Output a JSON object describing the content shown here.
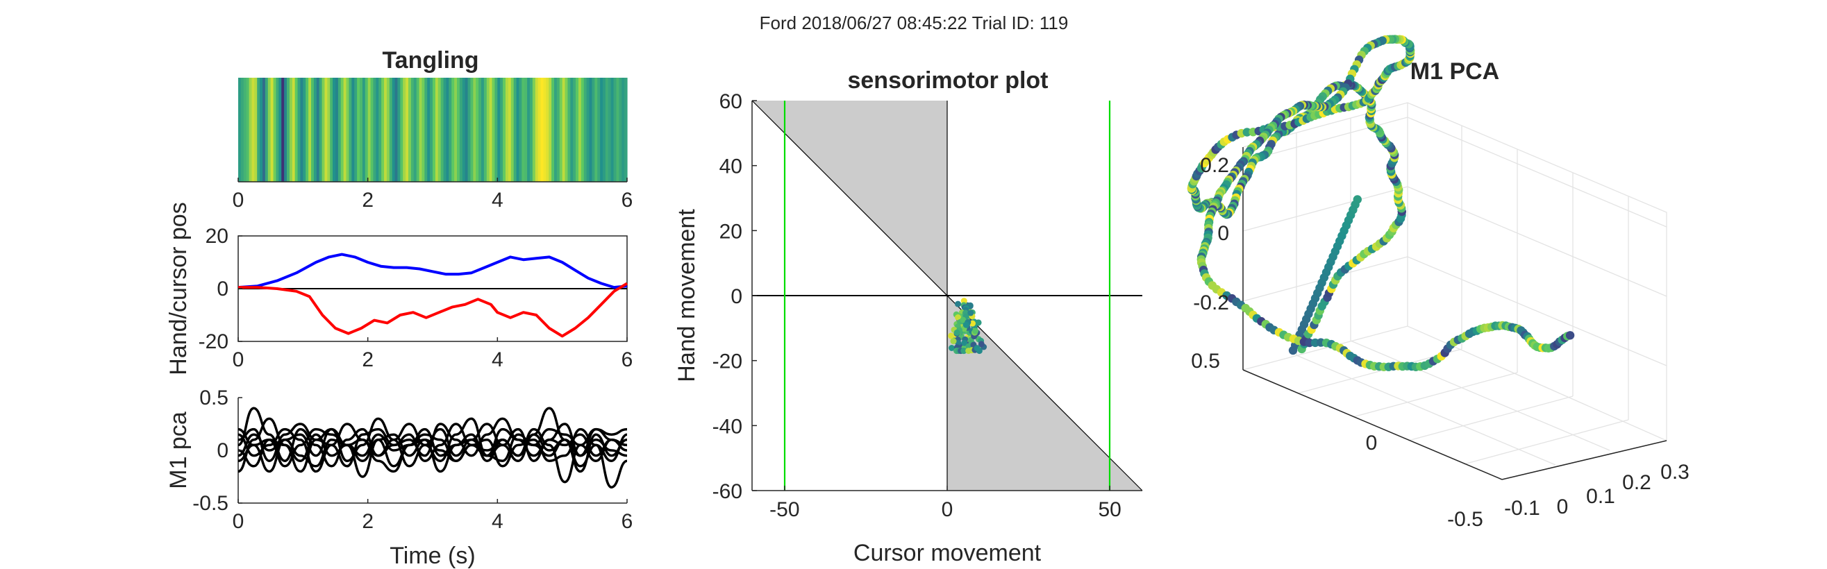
{
  "figure": {
    "suptitle": "Ford 2018/06/27 08:45:22 Trial ID: 119"
  },
  "chart_data": [
    {
      "id": "tangling",
      "type": "heatmap",
      "title": "Tangling",
      "xlim": [
        0,
        6
      ],
      "xticks": [
        "0",
        "2",
        "4",
        "6"
      ],
      "colormap": "viridis",
      "values": [
        0.55,
        0.6,
        0.65,
        0.7,
        0.85,
        0.92,
        0.88,
        0.6,
        0.5,
        0.35,
        0.6,
        0.82,
        0.93,
        0.78,
        0.62,
        0.5,
        0.15,
        0.45,
        0.65,
        0.82,
        0.92,
        0.75,
        0.58,
        0.45,
        0.55,
        0.72,
        0.88,
        0.7,
        0.55,
        0.42,
        0.6,
        0.8,
        0.92,
        0.85,
        0.66,
        0.5,
        0.45,
        0.62,
        0.78,
        0.9,
        0.8,
        0.63,
        0.48,
        0.58,
        0.75,
        0.68,
        0.55,
        0.7,
        0.84,
        0.72,
        0.6,
        0.52,
        0.62,
        0.78,
        0.9,
        0.82,
        0.65,
        0.5,
        0.4,
        0.55,
        0.72,
        0.86,
        0.92,
        0.8,
        0.65,
        0.58,
        0.7,
        0.85,
        0.78,
        0.62,
        0.5,
        0.6,
        0.75,
        0.88,
        0.8,
        0.66,
        0.55,
        0.48,
        0.6,
        0.74,
        0.82,
        0.72,
        0.6,
        0.52,
        0.45,
        0.58,
        0.7,
        0.82,
        0.75,
        0.64,
        0.55,
        0.68,
        0.82,
        0.9,
        0.78,
        0.64,
        0.5,
        0.6,
        0.76,
        0.88,
        0.92,
        0.8,
        0.62,
        0.5,
        0.58,
        0.7,
        0.68,
        0.55,
        0.62,
        0.8,
        0.92,
        0.97,
        1.0,
        0.98,
        0.95,
        0.88,
        0.72,
        0.58,
        0.64,
        0.78,
        0.9,
        0.8,
        0.66,
        0.55,
        0.62,
        0.74,
        0.86,
        0.75,
        0.62,
        0.55,
        0.48,
        0.58,
        0.68,
        0.6,
        0.5,
        0.55,
        0.62,
        0.58,
        0.52,
        0.6,
        0.66,
        0.6,
        0.54,
        0.58
      ]
    },
    {
      "id": "handcursor",
      "type": "line",
      "ylabel": "Hand/cursor pos",
      "xlim": [
        0,
        6
      ],
      "ylim": [
        -20,
        20
      ],
      "xticks": [
        "0",
        "2",
        "4",
        "6"
      ],
      "yticks": [
        "20",
        "0",
        "-20"
      ],
      "zero_line": true,
      "series": [
        {
          "color": "#0000ff",
          "points": [
            [
              0,
              0.5
            ],
            [
              0.3,
              1
            ],
            [
              0.6,
              3
            ],
            [
              0.9,
              6
            ],
            [
              1.2,
              10
            ],
            [
              1.4,
              12
            ],
            [
              1.6,
              13
            ],
            [
              1.8,
              12
            ],
            [
              2,
              10
            ],
            [
              2.2,
              8.5
            ],
            [
              2.4,
              8
            ],
            [
              2.6,
              8
            ],
            [
              2.8,
              7.5
            ],
            [
              3,
              6.5
            ],
            [
              3.2,
              5.5
            ],
            [
              3.4,
              5.5
            ],
            [
              3.6,
              6
            ],
            [
              3.8,
              8
            ],
            [
              4,
              10
            ],
            [
              4.2,
              12
            ],
            [
              4.4,
              11
            ],
            [
              4.6,
              11.5
            ],
            [
              4.8,
              12
            ],
            [
              5,
              10
            ],
            [
              5.2,
              7
            ],
            [
              5.4,
              4
            ],
            [
              5.6,
              2
            ],
            [
              5.8,
              0.5
            ],
            [
              6,
              1
            ]
          ]
        },
        {
          "color": "#ff0000",
          "points": [
            [
              0,
              0.5
            ],
            [
              0.3,
              0.5
            ],
            [
              0.6,
              0
            ],
            [
              0.9,
              -1
            ],
            [
              1.1,
              -3
            ],
            [
              1.3,
              -10
            ],
            [
              1.5,
              -15
            ],
            [
              1.7,
              -17
            ],
            [
              1.9,
              -15
            ],
            [
              2.1,
              -12
            ],
            [
              2.3,
              -13
            ],
            [
              2.5,
              -10
            ],
            [
              2.7,
              -9
            ],
            [
              2.9,
              -11
            ],
            [
              3.1,
              -9
            ],
            [
              3.3,
              -7
            ],
            [
              3.5,
              -6
            ],
            [
              3.7,
              -4
            ],
            [
              3.9,
              -6
            ],
            [
              4,
              -9
            ],
            [
              4.2,
              -11
            ],
            [
              4.4,
              -9
            ],
            [
              4.6,
              -10
            ],
            [
              4.8,
              -15
            ],
            [
              5,
              -18
            ],
            [
              5.2,
              -15
            ],
            [
              5.4,
              -11
            ],
            [
              5.6,
              -6
            ],
            [
              5.8,
              -1
            ],
            [
              6,
              2
            ]
          ]
        }
      ]
    },
    {
      "id": "m1pca_time",
      "type": "line",
      "ylabel": "M1 pca",
      "xlabel": "Time (s)",
      "xlim": [
        0,
        6
      ],
      "ylim": [
        -0.5,
        0.5
      ],
      "xticks": [
        "0",
        "2",
        "4",
        "6"
      ],
      "yticks": [
        "0.5",
        "0",
        "-0.5"
      ],
      "series_color": "#000000",
      "series": [
        [
          0.05,
          0.4,
          0.15,
          -0.1,
          0.2,
          0.05,
          -0.15,
          0.1,
          0.2,
          -0.05,
          0.1,
          0.25,
          0.05,
          -0.1,
          0.15,
          0.3,
          -0.05,
          0.05,
          0.2,
          -0.1,
          0.1,
          0.25,
          -0.05,
          0.2,
          0.1,
          0.05
        ],
        [
          -0.2,
          0.1,
          0.3,
          0.05,
          -0.2,
          0.1,
          0.2,
          -0.1,
          0.05,
          0.3,
          0.1,
          -0.15,
          0.05,
          0.2,
          -0.05,
          0.1,
          0.25,
          0.05,
          -0.1,
          0.15,
          0.4,
          0.1,
          -0.2,
          0.15,
          -0.05,
          0.1
        ],
        [
          0.15,
          -0.05,
          0.05,
          0.2,
          0.1,
          -0.2,
          0.05,
          0.25,
          0.1,
          -0.1,
          -0.2,
          0.05,
          0.15,
          0.1,
          -0.1,
          0.05,
          0.1,
          -0.15,
          0.05,
          0.1,
          -0.1,
          -0.05,
          0.2,
          0.05,
          -0.1,
          0.15
        ],
        [
          0.1,
          0.2,
          -0.1,
          0.15,
          0.25,
          0.1,
          0.05,
          -0.15,
          0.15,
          0.2,
          0.05,
          0.1,
          -0.05,
          0.25,
          0.1,
          -0.05,
          0.15,
          0.3,
          0.1,
          0.05,
          0.2,
          0.15,
          0.05,
          0.2,
          0.15,
          0.2
        ],
        [
          0.0,
          -0.15,
          0.1,
          0.05,
          -0.1,
          0.15,
          -0.05,
          0.05,
          -0.1,
          0.1,
          -0.15,
          0.05,
          0.2,
          -0.05,
          0.05,
          0.15,
          -0.1,
          0.1,
          -0.05,
          0.2,
          0.05,
          -0.3,
          0.05,
          -0.1,
          0.1,
          0.0
        ],
        [
          -0.1,
          0.05,
          -0.2,
          0.1,
          -0.05,
          -0.15,
          0.1,
          0.05,
          -0.25,
          0.1,
          0.15,
          -0.05,
          0.1,
          -0.2,
          0.05,
          0.1,
          -0.05,
          -0.1,
          0.15,
          0.05,
          -0.05,
          0.1,
          -0.15,
          0.05,
          -0.35,
          -0.1
        ],
        [
          0.2,
          0.05,
          0.1,
          -0.15,
          0.05,
          0.2,
          0.15,
          0.05,
          0.1,
          -0.05,
          0.05,
          0.15,
          -0.1,
          0.05,
          0.25,
          0.05,
          -0.05,
          0.2,
          0.1,
          -0.05,
          0.1,
          0.05,
          0.15,
          -0.05,
          0.1,
          0.05
        ],
        [
          -0.05,
          0.15,
          0.0,
          0.1,
          0.15,
          -0.05,
          0.2,
          0.05,
          -0.05,
          0.15,
          0.0,
          0.05,
          0.1,
          0.0,
          -0.1,
          0.05,
          0.0,
          0.1,
          -0.05,
          0.15,
          0.0,
          0.1,
          -0.05,
          0.1,
          0.0,
          -0.05
        ]
      ]
    },
    {
      "id": "sensorimotor",
      "type": "scatter",
      "title": "sensorimotor plot",
      "xlabel": "Cursor movement",
      "ylabel": "Hand movement",
      "xlim": [
        -60,
        60
      ],
      "ylim": [
        -60,
        60
      ],
      "xticks": [
        "-50",
        "0",
        "50"
      ],
      "yticks": [
        "60",
        "40",
        "20",
        "0",
        "-20",
        "-40",
        "-60"
      ],
      "target_lines_x": [
        -50,
        50
      ],
      "target_line_color": "#00dd00",
      "shaded_color": "#cccccc",
      "colormap": "viridis",
      "point_cloud": {
        "x_range": [
          0,
          13
        ],
        "y_range": [
          -17,
          3
        ]
      }
    },
    {
      "id": "m1pca3d",
      "type": "scatter",
      "title": "M1 PCA",
      "colormap": "viridis",
      "zticks": [
        "0.2",
        "0",
        "-0.2"
      ],
      "yticks": [
        "0.5",
        "0"
      ],
      "xticks": [
        "-0.5",
        "-0.1",
        "0",
        "0.1",
        "0.2",
        "0.3"
      ]
    }
  ]
}
